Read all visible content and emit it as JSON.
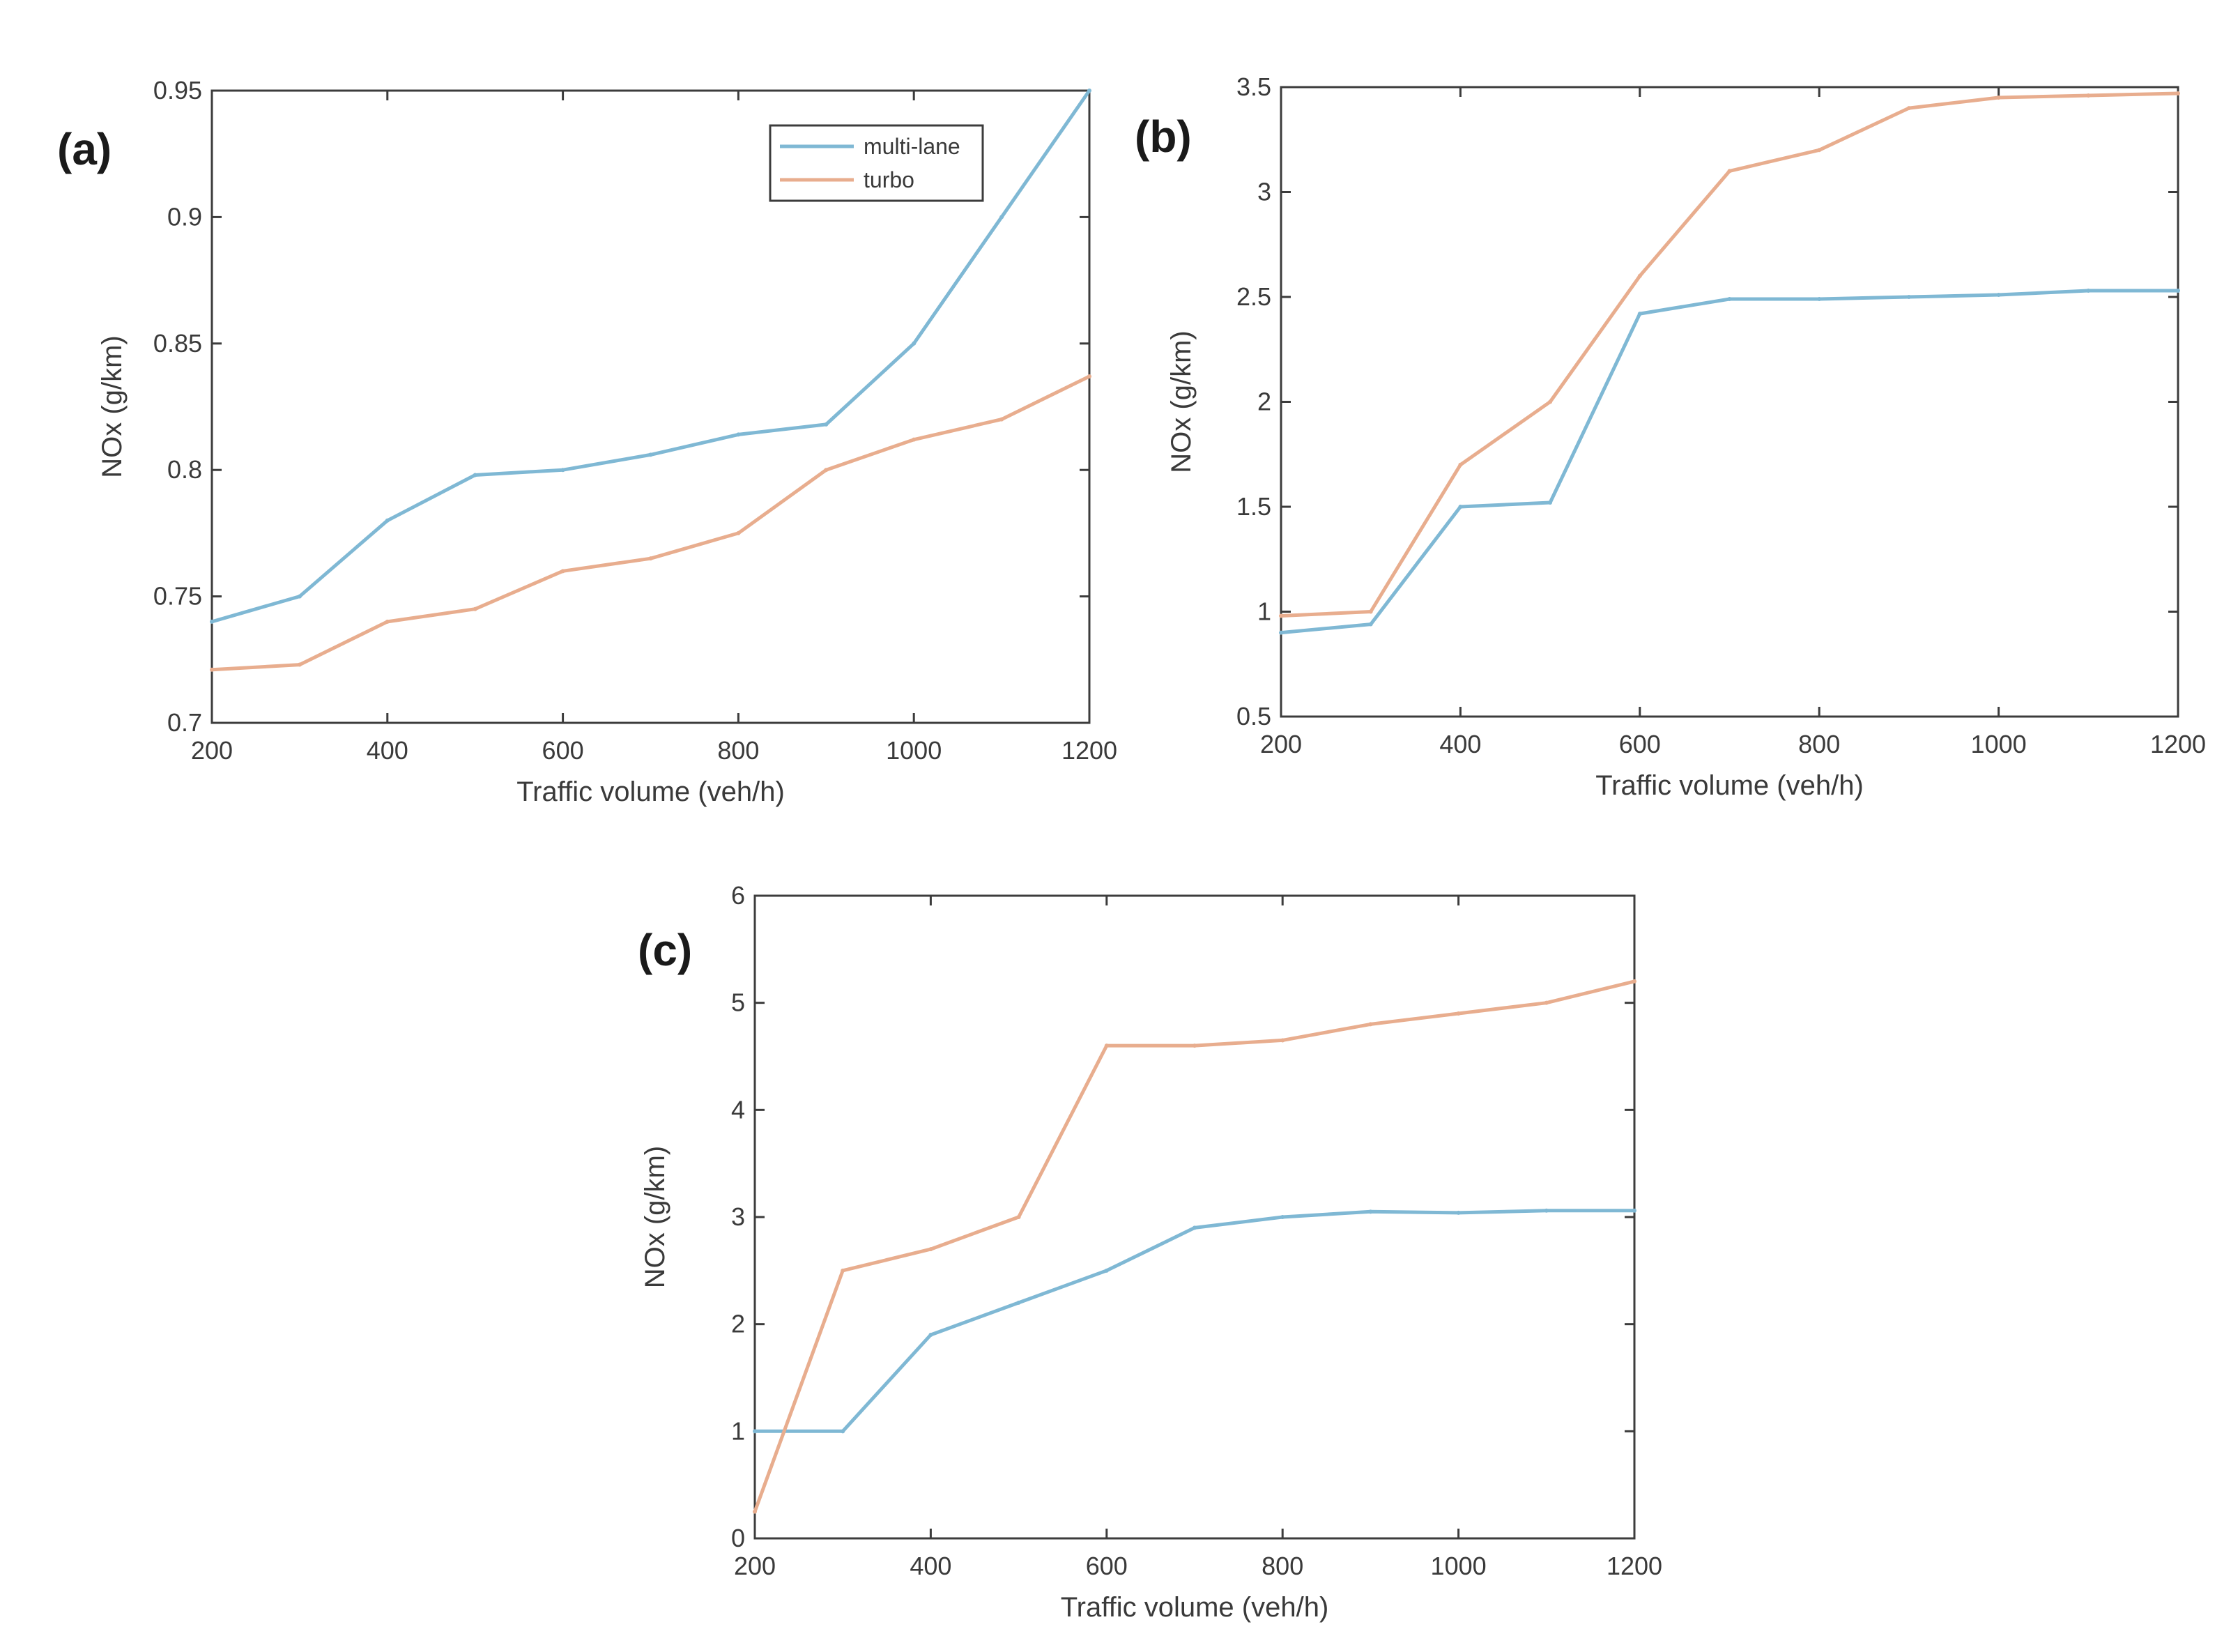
{
  "chart_data": [
    {
      "type": "line",
      "panel_label": "(a)",
      "xlabel": "Traffic volume (veh/h)",
      "ylabel": "NOx (g/km)",
      "xlim": [
        200,
        1200
      ],
      "ylim": [
        0.7,
        0.95
      ],
      "xticks": [
        "200",
        "400",
        "600",
        "800",
        "1000",
        "1200"
      ],
      "yticks": [
        "0.7",
        "0.75",
        "0.8",
        "0.85",
        "0.9",
        "0.95"
      ],
      "legend": {
        "position": "top-right",
        "entries": [
          "multi-lane",
          "turbo"
        ]
      },
      "x": [
        200,
        300,
        400,
        500,
        600,
        700,
        800,
        900,
        1000,
        1100,
        1200
      ],
      "series": [
        {
          "name": "multi-lane",
          "color": "#7fb8d4",
          "values": [
            0.74,
            0.75,
            0.78,
            0.798,
            0.8,
            0.806,
            0.814,
            0.818,
            0.85,
            0.9,
            0.95
          ]
        },
        {
          "name": "turbo",
          "color": "#e8ad8e",
          "values": [
            0.721,
            0.723,
            0.74,
            0.745,
            0.76,
            0.765,
            0.775,
            0.8,
            0.812,
            0.82,
            0.837
          ]
        }
      ]
    },
    {
      "type": "line",
      "panel_label": "(b)",
      "xlabel": "Traffic volume (veh/h)",
      "ylabel": "NOx (g/km)",
      "xlim": [
        200,
        1200
      ],
      "ylim": [
        0.5,
        3.5
      ],
      "xticks": [
        "200",
        "400",
        "600",
        "800",
        "1000",
        "1200"
      ],
      "yticks": [
        "0.5",
        "1",
        "1.5",
        "2",
        "2.5",
        "3",
        "3.5"
      ],
      "x": [
        200,
        300,
        400,
        500,
        600,
        700,
        800,
        900,
        1000,
        1100,
        1200
      ],
      "series": [
        {
          "name": "multi-lane",
          "color": "#7fb8d4",
          "values": [
            0.9,
            0.94,
            1.5,
            1.52,
            2.42,
            2.49,
            2.49,
            2.5,
            2.51,
            2.53,
            2.53
          ]
        },
        {
          "name": "turbo",
          "color": "#e8ad8e",
          "values": [
            0.98,
            1.0,
            1.7,
            2.0,
            2.6,
            3.1,
            3.2,
            3.4,
            3.45,
            3.46,
            3.47
          ]
        }
      ]
    },
    {
      "type": "line",
      "panel_label": "(c)",
      "xlabel": "Traffic volume (veh/h)",
      "ylabel": "NOx (g/km)",
      "xlim": [
        200,
        1200
      ],
      "ylim": [
        0,
        6
      ],
      "xticks": [
        "200",
        "400",
        "600",
        "800",
        "1000",
        "1200"
      ],
      "yticks": [
        "0",
        "1",
        "2",
        "3",
        "4",
        "5",
        "6"
      ],
      "x": [
        200,
        300,
        400,
        500,
        600,
        700,
        800,
        900,
        1000,
        1100,
        1200
      ],
      "series": [
        {
          "name": "multi-lane",
          "color": "#7fb8d4",
          "values": [
            1.0,
            1.0,
            1.9,
            2.2,
            2.5,
            2.9,
            3.0,
            3.05,
            3.04,
            3.06,
            3.06
          ]
        },
        {
          "name": "turbo",
          "color": "#e8ad8e",
          "values": [
            0.25,
            2.5,
            2.7,
            3.0,
            4.6,
            4.6,
            4.65,
            4.8,
            4.9,
            5.0,
            5.2
          ]
        }
      ]
    }
  ]
}
